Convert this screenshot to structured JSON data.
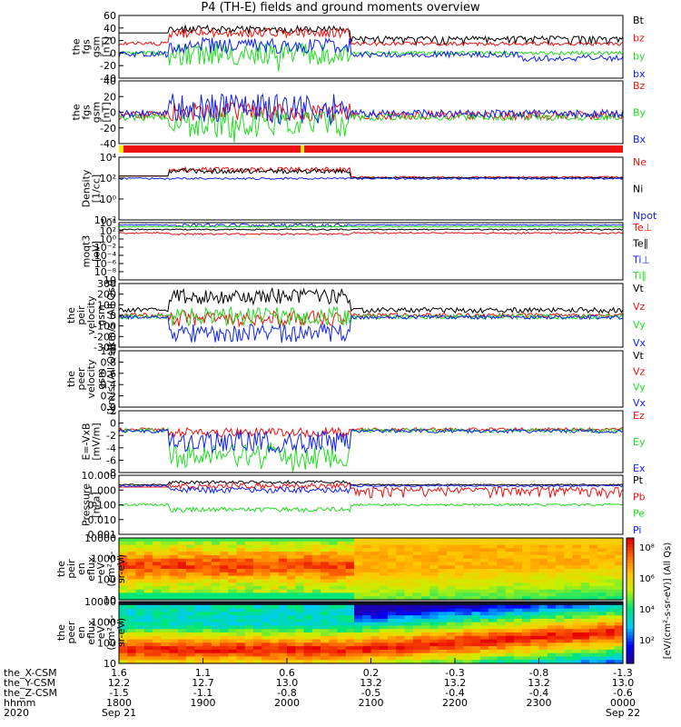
{
  "title": "P4 (TH-E) fields and ground moments overview",
  "colors": {
    "black": "#000000",
    "red": "#ee1111",
    "green": "#22dd22",
    "blue": "#1122ee"
  },
  "chart_data": [
    {
      "type": "line",
      "ylabel": [
        "the",
        "fgs",
        "gsm",
        "[nT]"
      ],
      "ylim": [
        -40,
        60
      ],
      "yticks": [
        "60",
        "40",
        "20",
        "0",
        "-20",
        "-40"
      ],
      "series": [
        {
          "name": "Bt",
          "color": "black"
        },
        {
          "name": "bz",
          "color": "red"
        },
        {
          "name": "by",
          "color": "green"
        },
        {
          "name": "bx",
          "color": "blue"
        }
      ]
    },
    {
      "type": "line",
      "ylabel": [
        "the",
        "fgs",
        "gsm",
        "[nT]"
      ],
      "ylim": [
        -60,
        40
      ],
      "yticks": [
        "40",
        "20",
        "0",
        "-20",
        "-40"
      ],
      "series": [
        {
          "name": "Bz",
          "color": "red"
        },
        {
          "name": "By",
          "color": "green"
        },
        {
          "name": "Bx",
          "color": "blue"
        }
      ]
    },
    {
      "type": "line",
      "log": true,
      "ylabel": [
        "Density",
        "[1/cc]"
      ],
      "yticks": [
        "10⁴",
        "10²",
        "10⁰",
        "10⁻²"
      ],
      "series": [
        {
          "name": "Ne",
          "color": "red"
        },
        {
          "name": "Ni",
          "color": "black"
        },
        {
          "name": "Npot",
          "color": "blue"
        }
      ]
    },
    {
      "type": "line",
      "log": true,
      "ylabel": [
        "moqt3",
        "[eV]"
      ],
      "yticks": [
        "10⁴",
        "10²",
        "10⁰",
        "10⁻²",
        "10⁻⁴",
        "10⁻⁶",
        "10⁻⁸",
        "10"
      ],
      "series": [
        {
          "name": "Te⊥",
          "color": "red"
        },
        {
          "name": "Te∥",
          "color": "black"
        },
        {
          "name": "Ti⊥",
          "color": "blue"
        },
        {
          "name": "Ti∥",
          "color": "green"
        }
      ]
    },
    {
      "type": "line",
      "ylabel": [
        "the",
        "peir",
        "velocity",
        "gsm",
        "[km/s (All Qs)]"
      ],
      "ylim": [
        -300,
        300
      ],
      "yticks": [
        "300",
        "200",
        "100",
        "0",
        "-100",
        "-200",
        "-300"
      ],
      "series": [
        {
          "name": "Vt",
          "color": "black"
        },
        {
          "name": "Vz",
          "color": "red"
        },
        {
          "name": "Vy",
          "color": "green"
        },
        {
          "name": "Vx",
          "color": "blue"
        }
      ]
    },
    {
      "type": "line",
      "ylabel": [
        "the",
        "peer",
        "velocity",
        "gsm",
        "[km/s (All Qs)]"
      ],
      "ylim": [
        0,
        1
      ],
      "yticks": [
        "1.0",
        "0.8",
        "0.6",
        "0.4",
        "0.2",
        "0.0"
      ],
      "series": [
        {
          "name": "Vt",
          "color": "black"
        },
        {
          "name": "Vz",
          "color": "red"
        },
        {
          "name": "Vy",
          "color": "green"
        },
        {
          "name": "Vx",
          "color": "blue"
        }
      ]
    },
    {
      "type": "line",
      "ylabel": [
        "E=-VxB",
        "[mV/m]"
      ],
      "ylim": [
        -10,
        3
      ],
      "yticks": [
        "2",
        "0",
        "-2",
        "-4",
        "-6",
        "-8"
      ],
      "series": [
        {
          "name": "Ez",
          "color": "red"
        },
        {
          "name": "Ey",
          "color": "green"
        },
        {
          "name": "Ex",
          "color": "blue"
        }
      ]
    },
    {
      "type": "line",
      "log": true,
      "ylabel": [
        "Pressure",
        "[nPa]"
      ],
      "yticks": [
        "10.000",
        "1.000",
        "0.100",
        "0.010",
        "0.001"
      ],
      "series": [
        {
          "name": "Pt",
          "color": "black"
        },
        {
          "name": "Pb",
          "color": "red"
        },
        {
          "name": "Pe",
          "color": "green"
        },
        {
          "name": "Pi",
          "color": "blue"
        }
      ]
    },
    {
      "type": "heatmap",
      "ylabel": [
        "the",
        "peir",
        "en",
        "eflux",
        "eV",
        "(cm²-s-",
        "sr-eV)"
      ],
      "yticks": [
        "10000",
        "1000",
        "100",
        "10"
      ]
    },
    {
      "type": "heatmap",
      "ylabel": [
        "the",
        "peer",
        "en",
        "eflux",
        "eV",
        "(cm²-s-",
        "sr-eV)"
      ],
      "yticks": [
        "10000",
        "1000",
        "100",
        "10"
      ]
    }
  ],
  "colorbar": {
    "ticks": [
      "10⁸",
      "10⁶",
      "10⁴",
      "10²"
    ],
    "label": "[eV/(cm²-s-sr-eV)] (All Qs)"
  },
  "xaxis": {
    "row_labels": [
      "the_X-CSM",
      "the_Y-CSM",
      "the_Z-CSM",
      "hhmm",
      "2020"
    ],
    "ticks": [
      {
        "x": "1.6",
        "y": "12.2",
        "z": "-1.5",
        "hhmm": "1800",
        "date": "Sep 21"
      },
      {
        "x": "1.1",
        "y": "12.7",
        "z": "-1.1",
        "hhmm": "1900",
        "date": ""
      },
      {
        "x": "0.6",
        "y": "13.0",
        "z": "-0.8",
        "hhmm": "2000",
        "date": ""
      },
      {
        "x": "0.2",
        "y": "13.2",
        "z": "-0.5",
        "hhmm": "2100",
        "date": ""
      },
      {
        "x": "-0.3",
        "y": "13.2",
        "z": "-0.4",
        "hhmm": "2200",
        "date": ""
      },
      {
        "x": "-0.8",
        "y": "13.2",
        "z": "-0.4",
        "hhmm": "2300",
        "date": ""
      },
      {
        "x": "-1.3",
        "y": "13.0",
        "z": "-0.6",
        "hhmm": "0000",
        "date": "Sep 22"
      }
    ]
  }
}
